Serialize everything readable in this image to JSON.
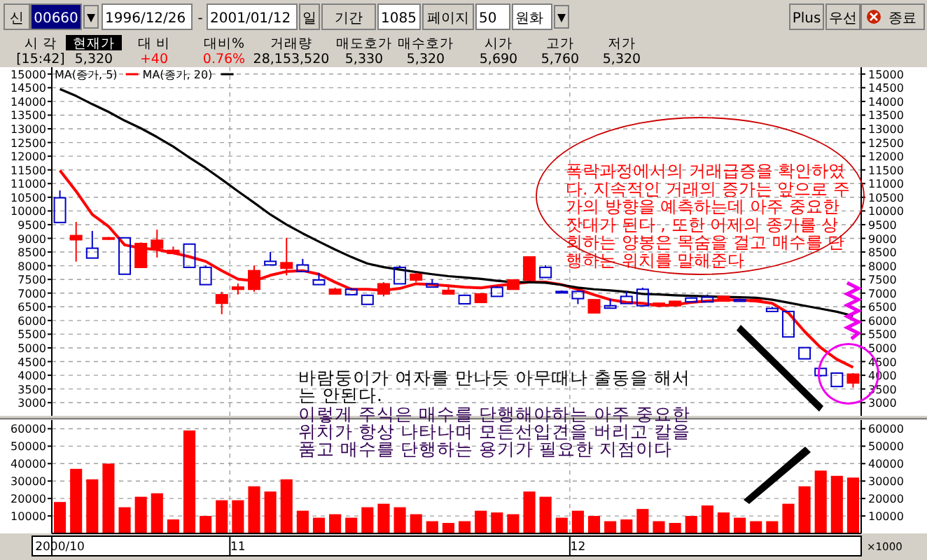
{
  "chart_data": [
    {
      "type": "other",
      "categories": [
        "시 각",
        "현재가",
        "대 비",
        "대비%",
        "거래량",
        "매도호가",
        "매수호가",
        "시가",
        "고가",
        "저가"
      ],
      "value_labels": [
        "[15:42]",
        "5,320",
        "+40",
        "0.76%",
        "28,153,520",
        "5,330",
        "5,320",
        "5,690",
        "5,760",
        "5,320"
      ],
      "annotations": [
        "신",
        "00660",
        "1996/12/26",
        "-",
        "2001/01/12",
        "일",
        "기간",
        "1085",
        "페이지",
        "50",
        "원화",
        "Plus",
        "우선",
        "종료"
      ]
    },
    {
      "type": "candlestick",
      "categories": [
        "2000/10",
        null,
        null,
        null,
        null,
        null,
        null,
        null,
        null,
        null,
        null,
        "11",
        null,
        null,
        null,
        null,
        null,
        null,
        null,
        null,
        null,
        null,
        null,
        null,
        null,
        null,
        null,
        null,
        null,
        null,
        null,
        null,
        "12",
        null,
        null,
        null,
        null,
        null,
        null,
        null,
        null,
        null,
        null,
        null,
        null,
        null,
        null,
        null,
        null,
        null
      ],
      "ohlc": [
        [
          10480,
          10750,
          9580,
          9580
        ],
        [
          8950,
          9600,
          8150,
          9100
        ],
        [
          8640,
          9270,
          8280,
          8280
        ],
        [
          8980,
          9050,
          8950,
          9020
        ],
        [
          9020,
          9020,
          7690,
          7690
        ],
        [
          7940,
          8850,
          7940,
          8810
        ],
        [
          8640,
          9320,
          8300,
          8930
        ],
        [
          8450,
          8700,
          8450,
          8560
        ],
        [
          8790,
          8790,
          7940,
          7940
        ],
        [
          7940,
          8000,
          7310,
          7310
        ],
        [
          6630,
          7050,
          6230,
          6940
        ],
        [
          7140,
          7350,
          6950,
          7220
        ],
        [
          7140,
          8000,
          7050,
          7820
        ],
        [
          8160,
          8500,
          8030,
          8030
        ],
        [
          7910,
          9020,
          7650,
          8110
        ],
        [
          8030,
          8250,
          7790,
          7790
        ],
        [
          7480,
          7740,
          7310,
          7310
        ],
        [
          6970,
          7200,
          6970,
          7140
        ],
        [
          7140,
          7200,
          6940,
          6940
        ],
        [
          6920,
          6950,
          6590,
          6590
        ],
        [
          6970,
          7400,
          6880,
          7340
        ],
        [
          7940,
          8000,
          7340,
          7340
        ],
        [
          7480,
          7750,
          7400,
          7690
        ],
        [
          7340,
          7510,
          7220,
          7220
        ],
        [
          6970,
          7310,
          6970,
          7100
        ],
        [
          6920,
          6950,
          6610,
          6610
        ],
        [
          6660,
          7000,
          6660,
          6970
        ],
        [
          7210,
          7250,
          6880,
          6880
        ],
        [
          7140,
          7500,
          7140,
          7480
        ],
        [
          7480,
          8320,
          7480,
          8320
        ],
        [
          7940,
          8020,
          7570,
          7570
        ],
        [
          7060,
          7100,
          7000,
          7030
        ],
        [
          7060,
          7100,
          6600,
          6800
        ],
        [
          6280,
          6760,
          6280,
          6760
        ],
        [
          6540,
          6800,
          6450,
          6450
        ],
        [
          6880,
          7060,
          6620,
          6620
        ],
        [
          7140,
          7200,
          6540,
          6540
        ],
        [
          6540,
          6650,
          6540,
          6630
        ],
        [
          6540,
          6720,
          6540,
          6700
        ],
        [
          6820,
          6850,
          6680,
          6680
        ],
        [
          6850,
          6950,
          6680,
          6680
        ],
        [
          6710,
          6900,
          6710,
          6880
        ],
        [
          6760,
          6800,
          6700,
          6700
        ],
        [
          6700,
          6780,
          6700,
          6760
        ],
        [
          6440,
          6500,
          6330,
          6330
        ],
        [
          6330,
          6330,
          5400,
          5400
        ],
        [
          5010,
          5010,
          4600,
          4600
        ],
        [
          4250,
          4250,
          3950,
          3990
        ],
        [
          4080,
          4100,
          3590,
          3590
        ],
        [
          3720,
          4080,
          3550,
          4040
        ]
      ],
      "series": [
        {
          "type": "line",
          "name": "MA(종가, 5)",
          "color": "#ff0000",
          "values": [
            11480,
            10720,
            9870,
            9440,
            8760,
            8640,
            8590,
            8470,
            8330,
            8160,
            7820,
            7510,
            7450,
            7650,
            7790,
            7820,
            7690,
            7400,
            7140,
            7140,
            7100,
            7170,
            7340,
            7310,
            7270,
            7220,
            7190,
            7270,
            7340,
            7400,
            7400,
            7310,
            7140,
            6940,
            6760,
            6660,
            6630,
            6540,
            6580,
            6660,
            6710,
            6750,
            6750,
            6710,
            6630,
            6280,
            5600,
            5010,
            4580,
            4290
          ]
        },
        {
          "type": "line",
          "name": "MA(종가, 20)",
          "color": "#000000",
          "values": [
            14450,
            14200,
            13900,
            13620,
            13300,
            13020,
            12700,
            12350,
            11950,
            11570,
            11150,
            10720,
            10300,
            9870,
            9500,
            9180,
            8880,
            8590,
            8320,
            8080,
            7950,
            7860,
            7770,
            7690,
            7620,
            7570,
            7520,
            7450,
            7400,
            7400,
            7380,
            7300,
            7200,
            7140,
            7100,
            7050,
            6970,
            6950,
            6920,
            6900,
            6880,
            6860,
            6850,
            6830,
            6760,
            6650,
            6540,
            6430,
            6320,
            6170
          ]
        }
      ],
      "ylim": [
        2520,
        15250
      ],
      "yticks": [
        3000,
        3500,
        4000,
        4500,
        5000,
        5500,
        6000,
        6500,
        7000,
        7500,
        8000,
        8500,
        9000,
        9500,
        10000,
        10500,
        11000,
        11500,
        12000,
        12500,
        13000,
        13500,
        14000,
        14500,
        15000
      ],
      "y2lim": [
        2520,
        15250
      ],
      "y2ticks": [
        3000,
        3500,
        4000,
        4500,
        5000,
        5500,
        6000,
        6500,
        7000,
        7500,
        8000,
        8500,
        9000,
        9500,
        10000,
        10500,
        11000,
        11500,
        12000,
        12500,
        13000,
        13500,
        14000,
        14500,
        15000
      ],
      "grid": true,
      "legend": "top left",
      "tick_labels": "y",
      "annotations": [
        "폭락과정에서의 거래급증을 확인하였\n다. 지속적인 거래의 증가는 앞으로 주\n가의 방향을 예측하는데 아주 중요한\n잣대가 된다 , 또한 어제의 종가를 상\n회하는 양봉은 목숨을 걸고 매수를 단\n행하는 위치를 말해준다",
        "바람둥이가 여자를 만나듯 아무때나 출동을 해서\n는 안된다.",
        "이렇게 주식은 매수를 단행해야하는 아주 중요한\n위치가 항상 나타나며 모든선입견을 버리고 칼을\n품고 매수를 단행하는 용기가 필요한 지점이다"
      ]
    },
    {
      "type": "bar",
      "categories": [
        "2000/10",
        null,
        null,
        null,
        null,
        null,
        null,
        null,
        null,
        null,
        null,
        "11",
        null,
        null,
        null,
        null,
        null,
        null,
        null,
        null,
        null,
        null,
        null,
        null,
        null,
        null,
        null,
        null,
        null,
        null,
        null,
        null,
        "12",
        null,
        null,
        null,
        null,
        null,
        null,
        null,
        null,
        null,
        null,
        null,
        null,
        null,
        null,
        null,
        null,
        null
      ],
      "values": [
        18000,
        37000,
        31000,
        40000,
        15000,
        21000,
        23000,
        8000,
        59000,
        10000,
        19000,
        19000,
        27000,
        24000,
        31000,
        13000,
        9000,
        11000,
        9000,
        15000,
        17000,
        15000,
        11000,
        7000,
        6000,
        7000,
        13000,
        12000,
        11000,
        24000,
        21000,
        9000,
        13000,
        10000,
        7000,
        8000,
        14000,
        7000,
        6000,
        10000,
        16000,
        12000,
        9000,
        7000,
        7000,
        17000,
        27000,
        36000,
        33000,
        32000
      ],
      "color": "#ff0000",
      "ylim": [
        0,
        65000
      ],
      "yticks": [
        10000,
        20000,
        30000,
        40000,
        50000,
        60000
      ],
      "y2lim": [
        0,
        65000
      ],
      "y2ticks": [
        10000,
        20000,
        30000,
        40000,
        50000,
        60000
      ],
      "grid": true,
      "annotations": [
        "×1000"
      ]
    }
  ]
}
